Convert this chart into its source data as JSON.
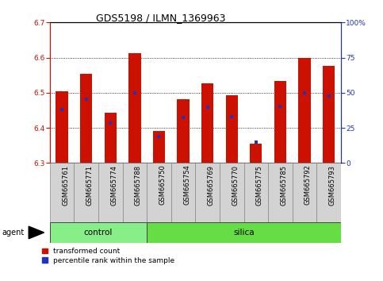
{
  "title": "GDS5198 / ILMN_1369963",
  "samples": [
    "GSM665761",
    "GSM665771",
    "GSM665774",
    "GSM665788",
    "GSM665750",
    "GSM665754",
    "GSM665769",
    "GSM665770",
    "GSM665775",
    "GSM665785",
    "GSM665792",
    "GSM665793"
  ],
  "n_control": 4,
  "n_silica": 8,
  "red_bar_top": [
    6.504,
    6.553,
    6.443,
    6.613,
    6.391,
    6.481,
    6.527,
    6.493,
    6.356,
    6.534,
    6.6,
    6.576
  ],
  "blue_marker_y": [
    6.452,
    6.481,
    6.413,
    6.5,
    6.375,
    6.43,
    6.46,
    6.432,
    6.36,
    6.462,
    6.5,
    6.49
  ],
  "y_min": 6.3,
  "y_max": 6.7,
  "y_ticks_left": [
    6.3,
    6.4,
    6.5,
    6.6,
    6.7
  ],
  "y2_pct": [
    0,
    25,
    50,
    75,
    100
  ],
  "y2_labels": [
    "0",
    "25",
    "50",
    "75",
    "100%"
  ],
  "bar_color": "#cc1100",
  "blue_color": "#2233bb",
  "control_color": "#88ee88",
  "silica_color": "#66dd44",
  "bar_width": 0.5,
  "title_fontsize": 9,
  "tick_fontsize": 6.5,
  "sample_fontsize": 6,
  "group_fontsize": 7.5,
  "legend_fontsize": 6.5,
  "legend_red": "transformed count",
  "legend_blue": "percentile rank within the sample",
  "agent_label": "agent"
}
